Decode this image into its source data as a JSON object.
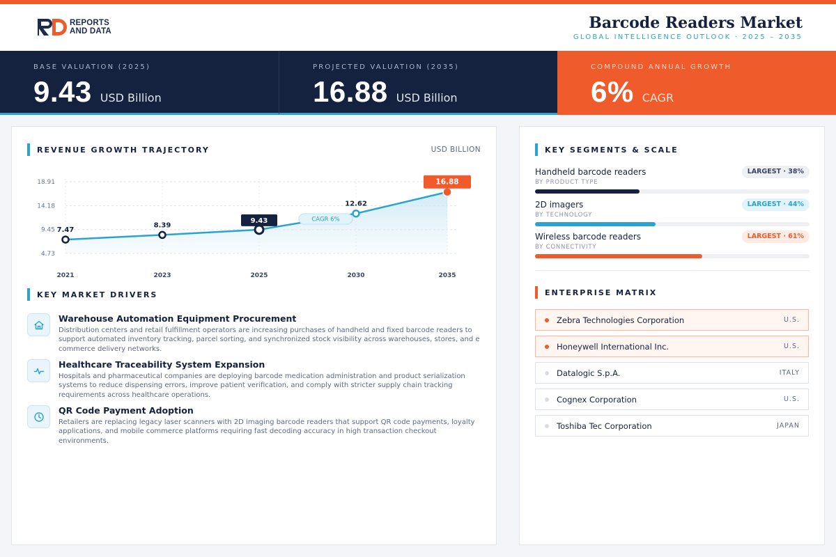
{
  "brand": {
    "logo_line1": "REPORTS",
    "logo_line2": "AND DATA"
  },
  "header": {
    "title": "Barcode Readers Market",
    "subtitle": "GLOBAL INTELLIGENCE OUTLOOK  ·  2025 – 2035"
  },
  "kpis": [
    {
      "label": "BASE VALUATION (2025)",
      "value": "9.43",
      "unit": "USD Billion"
    },
    {
      "label": "PROJECTED VALUATION (2035)",
      "value": "16.88",
      "unit": "USD Billion"
    },
    {
      "label": "COMPOUND ANNUAL GROWTH",
      "value": "6%",
      "unit": "CAGR"
    }
  ],
  "chart_section": {
    "title": "REVENUE GROWTH TRAJECTORY",
    "unit": "USD BILLION"
  },
  "chart_data": {
    "type": "area",
    "categories": [
      "2021",
      "2023",
      "2025",
      "2030",
      "2035"
    ],
    "values": [
      7.47,
      8.39,
      9.43,
      12.62,
      16.88
    ],
    "data_labels": [
      "7.47",
      "8.39",
      "9.43",
      "12.62",
      "16.88"
    ],
    "y_ticks": [
      "18.91",
      "14.18",
      "9.45",
      "4.73"
    ],
    "ylim": [
      4.73,
      18.91
    ],
    "annotation": "CAGR 6%",
    "highlight_base": "2025",
    "highlight_projected": "2035",
    "grid": "horizontal dashed",
    "colors": {
      "line": "#2aa3cf",
      "area_top": "#cfe9f6",
      "highlight": "#ef5b2b",
      "base_label_bg": "#14213f"
    }
  },
  "drivers_section": {
    "title": "KEY MARKET DRIVERS"
  },
  "drivers": [
    {
      "icon": "home-icon",
      "title": "Warehouse Automation Equipment Procurement",
      "desc": "Distribution centers and retail fulfillment operators are increasing purchases of handheld and fixed barcode readers to support automated inventory tracking, parcel sorting, and synchronized stock visibility across warehouses, stores, and e commerce delivery networks."
    },
    {
      "icon": "pulse-icon",
      "title": "Healthcare Traceability System Expansion",
      "desc": "Hospitals and pharmaceutical companies are deploying barcode medication administration and product serialization systems to reduce dispensing errors, improve patient verification, and comply with stricter supply chain tracking requirements across healthcare operations."
    },
    {
      "icon": "clock-icon",
      "title": "QR Code Payment Adoption",
      "desc": "Retailers are replacing legacy laser scanners with 2D imaging barcode readers that support QR code payments, loyalty applications, and mobile commerce platforms requiring fast decoding accuracy in high transaction checkout environments."
    }
  ],
  "segments_section": {
    "title": "KEY SEGMENTS & SCALE"
  },
  "segments": [
    {
      "name": "Handheld barcode readers",
      "sub": "BY PRODUCT TYPE",
      "badge": "LARGEST · 38%",
      "share": 0.38,
      "color": "#14213f"
    },
    {
      "name": "2D imagers",
      "sub": "BY TECHNOLOGY",
      "badge": "LARGEST · 44%",
      "share": 0.44,
      "color": "#2aa3cf"
    },
    {
      "name": "Wireless barcode readers",
      "sub": "BY CONNECTIVITY",
      "badge": "LARGEST · 61%",
      "share": 0.61,
      "color": "#ef5b2b"
    }
  ],
  "enterprise_section": {
    "title": "ENTERPRISE MATRIX"
  },
  "enterprises": [
    {
      "name": "Zebra Technologies Corporation",
      "country": "U.S.",
      "highlighted": true
    },
    {
      "name": "Honeywell International Inc.",
      "country": "U.S.",
      "highlighted": true
    },
    {
      "name": "Datalogic S.p.A.",
      "country": "ITALY",
      "highlighted": false
    },
    {
      "name": "Cognex Corporation",
      "country": "U.S.",
      "highlighted": false
    },
    {
      "name": "Toshiba Tec Corporation",
      "country": "JAPAN",
      "highlighted": false
    }
  ]
}
